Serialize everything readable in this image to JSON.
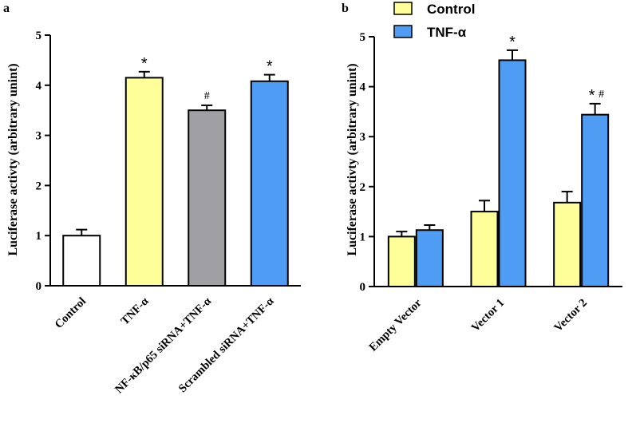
{
  "chart_data": [
    {
      "panel": "a",
      "type": "bar",
      "ylabel": "Luciferase activty (arbitrary unint)",
      "xlabel": "",
      "ylim": [
        0,
        5
      ],
      "yticks": [
        0,
        1,
        2,
        3,
        4,
        5
      ],
      "categories": [
        "Control",
        "TNF-α",
        "NF-κB/p65 siRNA+TNF-α",
        "Scrambled siRNA+TNF-α"
      ],
      "values": [
        1.0,
        4.15,
        3.5,
        4.08
      ],
      "errors": [
        0.12,
        0.12,
        0.1,
        0.13
      ],
      "colors": [
        "#ffffff",
        "#ffff99",
        "#a0a0a4",
        "#4f9cf5"
      ],
      "annotations": [
        "",
        "*",
        "#",
        "*"
      ]
    },
    {
      "panel": "b",
      "type": "bar",
      "ylabel": "Luciferase activty (arbitrary unint)",
      "xlabel": "",
      "ylim": [
        0,
        5
      ],
      "yticks": [
        0,
        1,
        2,
        3,
        4,
        5
      ],
      "categories": [
        "Empty Vector",
        "Vector 1",
        "Vector 2"
      ],
      "legend": {
        "position": "top-left",
        "entries": [
          "Control",
          "TNF-α"
        ]
      },
      "series": [
        {
          "name": "Control",
          "color": "#ffff99",
          "values": [
            1.0,
            1.5,
            1.68
          ],
          "errors": [
            0.1,
            0.22,
            0.22
          ],
          "annotations": [
            "",
            "",
            ""
          ]
        },
        {
          "name": "TNF-α",
          "color": "#4f9cf5",
          "values": [
            1.13,
            4.53,
            3.44
          ],
          "errors": [
            0.1,
            0.2,
            0.22
          ],
          "annotations": [
            "",
            "*",
            "*#"
          ]
        }
      ]
    }
  ]
}
